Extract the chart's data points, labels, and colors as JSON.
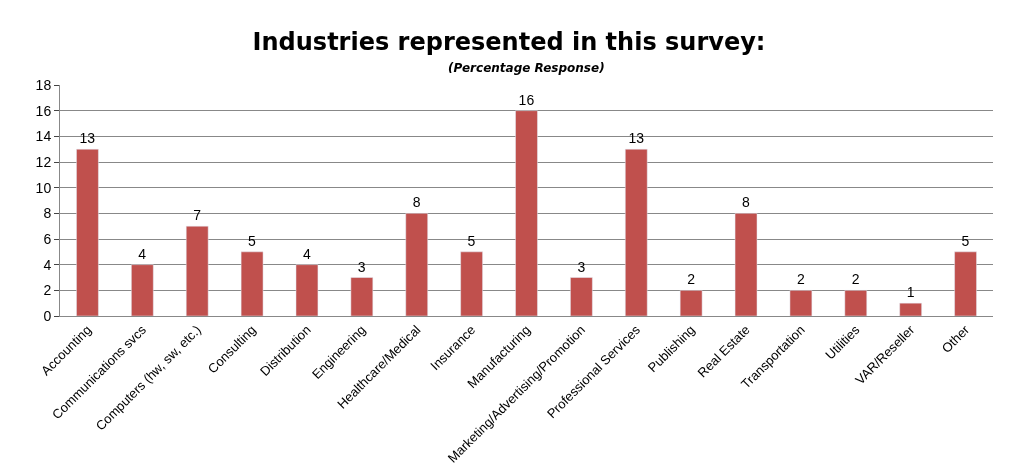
{
  "chart_data": {
    "type": "bar",
    "title": "Industries represented in this survey:",
    "subtitle": "(Percentage Response)",
    "categories": [
      "Accounting",
      "Communications svcs",
      "Computers (hw, sw, etc.)",
      "Consulting",
      "Distribution",
      "Engineering",
      "Healthcare/Medical",
      "Insurance",
      "Manufacturing",
      "Marketing/Advertising/Promotion",
      "Professional Services",
      "Publishing",
      "Real Estate",
      "Transportation",
      "Utilities",
      "VAR/Reseller",
      "Other"
    ],
    "values": [
      13,
      4,
      7,
      5,
      4,
      3,
      8,
      5,
      16,
      3,
      13,
      2,
      8,
      2,
      2,
      1,
      5
    ],
    "color": "#c0504d",
    "ylim": [
      0,
      18
    ],
    "yticks": [
      0,
      2,
      4,
      6,
      8,
      10,
      12,
      14,
      16,
      18
    ],
    "grid": "y",
    "data_labels": true,
    "legend": false
  }
}
